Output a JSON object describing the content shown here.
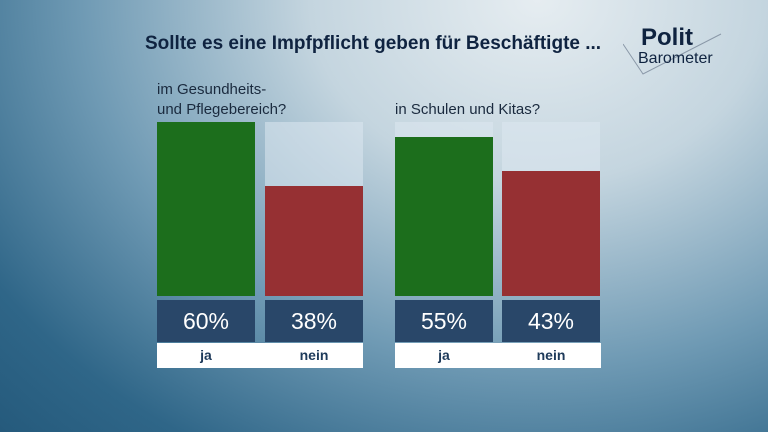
{
  "title": "Sollte es eine Impfpflicht geben für Beschäftigte ...",
  "logo": {
    "line1": "Polit",
    "line2": "Barometer"
  },
  "colors": {
    "ja": "#1c6e1c",
    "nein": "#963033"
  },
  "chart_data": [
    {
      "type": "bar",
      "title_lines": [
        "im Gesundheits-",
        "und Pflegebereich?"
      ],
      "categories": [
        "ja",
        "nein"
      ],
      "values": [
        60,
        38
      ],
      "labels": [
        "60%",
        "38%"
      ],
      "ylim": [
        0,
        60
      ]
    },
    {
      "type": "bar",
      "title_lines": [
        "in Schulen und Kitas?"
      ],
      "categories": [
        "ja",
        "nein"
      ],
      "values": [
        55,
        43
      ],
      "labels": [
        "55%",
        "43%"
      ],
      "ylim": [
        0,
        60
      ]
    }
  ]
}
